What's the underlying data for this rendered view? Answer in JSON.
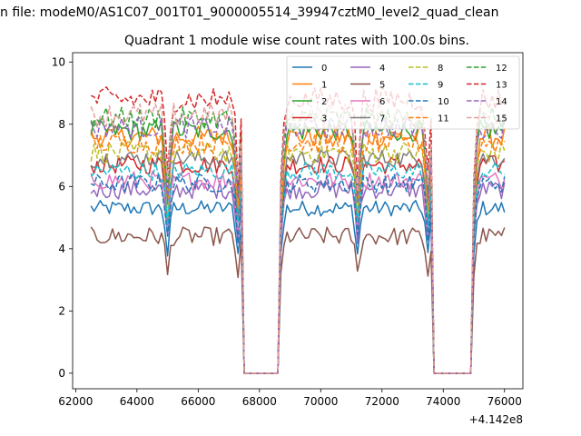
{
  "chart_data": {
    "type": "line",
    "suptitle": "n file: modeM0/AS1C07_001T01_9000005514_39947cztM0_level2_quad_clean",
    "title": "Quadrant 1 module wise count rates with 100.0s bins.",
    "xlabel": "",
    "ylabel": "",
    "x_offset_label": "+4.142e8",
    "xlim": [
      61900,
      76600
    ],
    "ylim": [
      -0.5,
      10.3
    ],
    "x_ticks": [
      {
        "value": 62000,
        "label": "62000"
      },
      {
        "value": 64000,
        "label": "64000"
      },
      {
        "value": 66000,
        "label": "66000"
      },
      {
        "value": 68000,
        "label": "68000"
      },
      {
        "value": 70000,
        "label": "70000"
      },
      {
        "value": 72000,
        "label": "72000"
      },
      {
        "value": 74000,
        "label": "74000"
      },
      {
        "value": 76000,
        "label": "76000"
      }
    ],
    "y_ticks": [
      {
        "value": 0,
        "label": "0"
      },
      {
        "value": 2,
        "label": "2"
      },
      {
        "value": 4,
        "label": "4"
      },
      {
        "value": 6,
        "label": "6"
      },
      {
        "value": 8,
        "label": "8"
      },
      {
        "value": 10,
        "label": "10"
      }
    ],
    "bin_seconds": 100,
    "x_start": 62500,
    "x_end": 76000,
    "gaps": [
      [
        67500,
        68600
      ],
      [
        73700,
        74900
      ]
    ],
    "dips": [
      65000,
      67300,
      68700,
      71200,
      73500,
      75000
    ],
    "legend_position": "top-right",
    "series": [
      {
        "name": "0",
        "color": "#1f77b4",
        "dash": "solid",
        "base": 5.3,
        "noise": 0.25
      },
      {
        "name": "1",
        "color": "#ff7f0e",
        "dash": "solid",
        "base": 7.6,
        "noise": 0.35
      },
      {
        "name": "2",
        "color": "#2ca02c",
        "dash": "solid",
        "base": 7.8,
        "noise": 0.35
      },
      {
        "name": "3",
        "color": "#d62728",
        "dash": "solid",
        "base": 6.7,
        "noise": 0.3
      },
      {
        "name": "4",
        "color": "#9467bd",
        "dash": "solid",
        "base": 5.9,
        "noise": 0.3
      },
      {
        "name": "5",
        "color": "#8c564b",
        "dash": "solid",
        "base": 4.4,
        "noise": 0.3
      },
      {
        "name": "6",
        "color": "#e377c2",
        "dash": "solid",
        "base": 6.2,
        "noise": 0.3
      },
      {
        "name": "7",
        "color": "#7f7f7f",
        "dash": "solid",
        "base": 6.9,
        "noise": 0.3
      },
      {
        "name": "8",
        "color": "#bcbd22",
        "dash": "dashed",
        "base": 7.1,
        "noise": 0.35
      },
      {
        "name": "9",
        "color": "#17becf",
        "dash": "dashed",
        "base": 6.5,
        "noise": 0.3
      },
      {
        "name": "10",
        "color": "#1f77b4",
        "dash": "dashed",
        "base": 6.1,
        "noise": 0.3
      },
      {
        "name": "11",
        "color": "#ff7f0e",
        "dash": "dashed",
        "base": 7.4,
        "noise": 0.35
      },
      {
        "name": "12",
        "color": "#2ca02c",
        "dash": "dashed",
        "base": 8.2,
        "noise": 0.35
      },
      {
        "name": "13",
        "color": "#d62728",
        "dash": "dashed",
        "base": 8.8,
        "noise": 0.4
      },
      {
        "name": "14",
        "color": "#9467bd",
        "dash": "dashed",
        "base": 7.9,
        "noise": 0.35
      },
      {
        "name": "15",
        "color": "#e6a0a0",
        "dash": "dashed",
        "base": 8.3,
        "noise": 0.4
      }
    ]
  }
}
